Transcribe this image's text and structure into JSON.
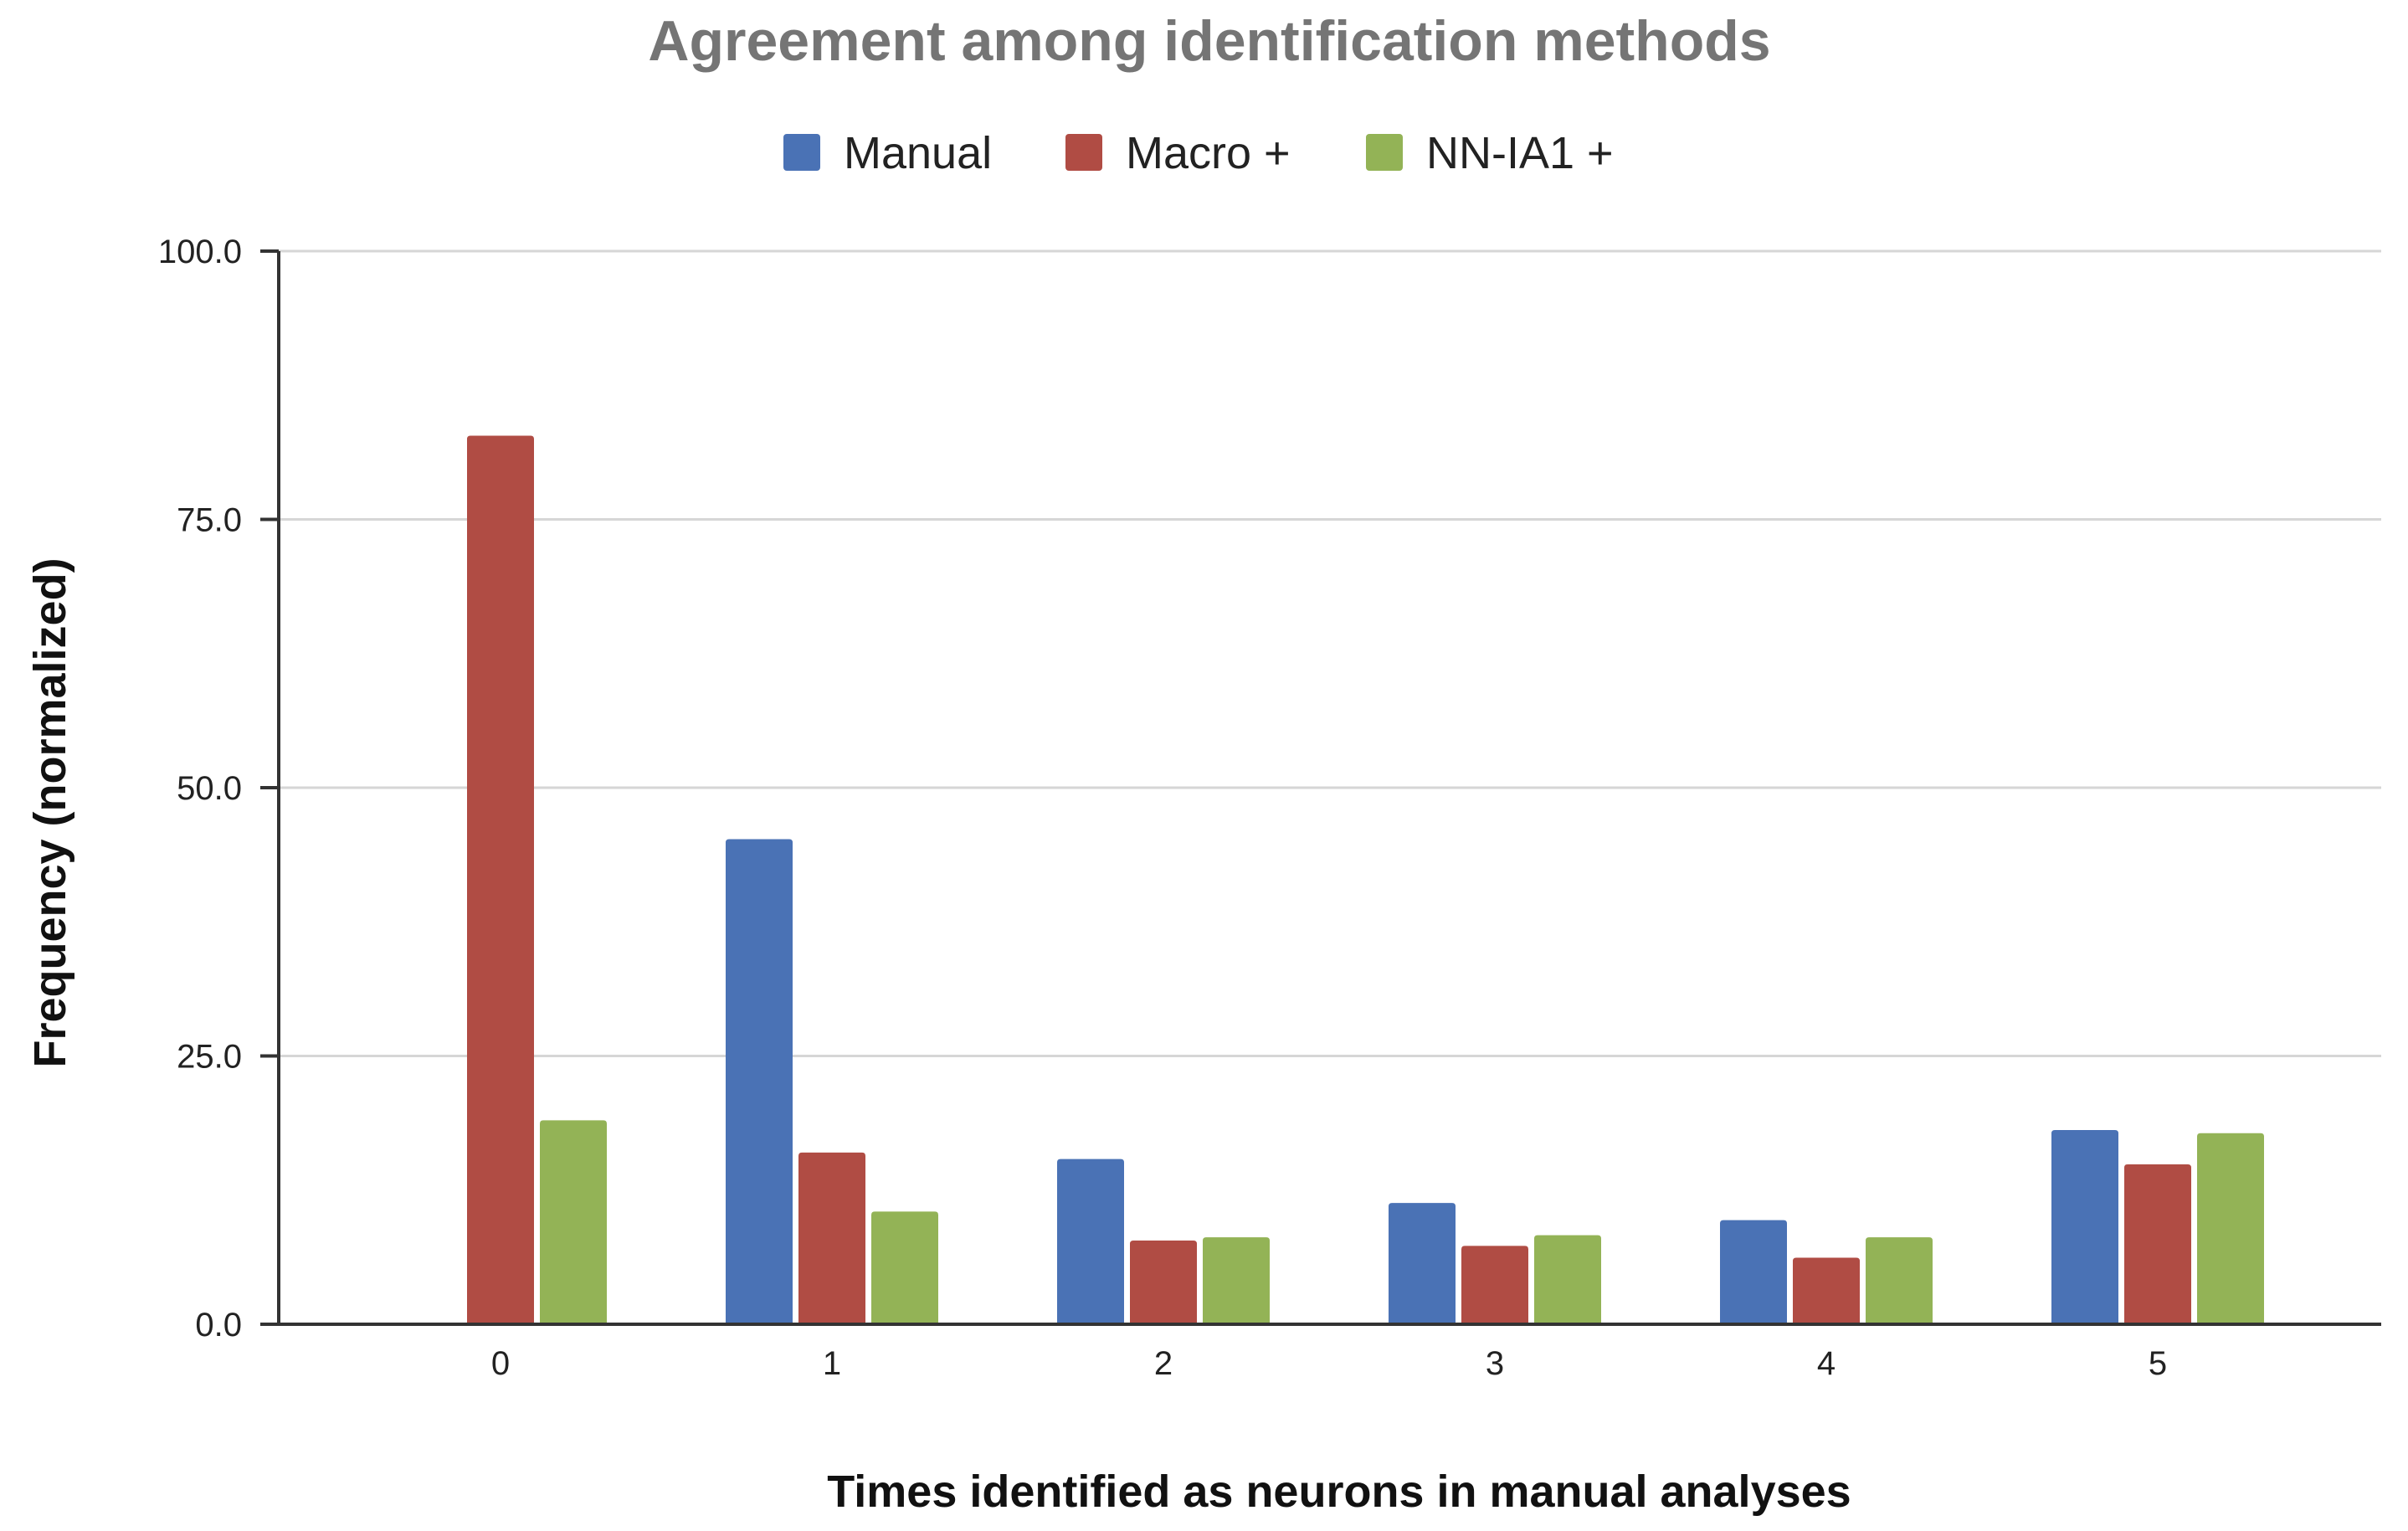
{
  "chart_data": {
    "type": "bar",
    "title": "Agreement among identification methods",
    "xlabel": "Times identified as neurons in manual analyses",
    "ylabel": "Frequency (normalized)",
    "categories": [
      "0",
      "1",
      "2",
      "3",
      "4",
      "5"
    ],
    "series": [
      {
        "name": "Manual",
        "color": "#4a72b5",
        "values": [
          0,
          45.2,
          15.4,
          11.3,
          9.7,
          18.1
        ]
      },
      {
        "name": "Macro +",
        "color": "#b04c44",
        "values": [
          82.8,
          16.0,
          7.8,
          7.3,
          6.2,
          14.9
        ]
      },
      {
        "name": "NN-IA1 +",
        "color": "#93b356",
        "values": [
          19.0,
          10.5,
          8.1,
          8.3,
          8.1,
          17.8
        ]
      }
    ],
    "yticks": [
      "0.0",
      "25.0",
      "50.0",
      "75.0",
      "100.0"
    ],
    "ylim": [
      0,
      100
    ],
    "grid": true,
    "legend_position": "top-center"
  }
}
